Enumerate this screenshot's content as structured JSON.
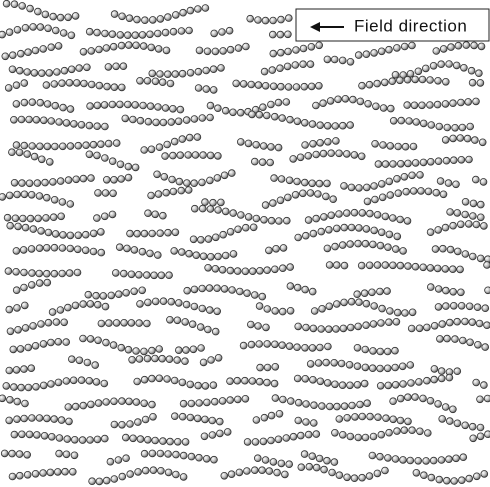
{
  "label": "Field direction"
}
